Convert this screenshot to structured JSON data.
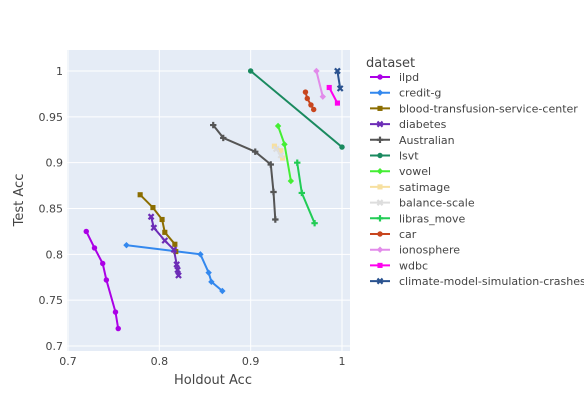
{
  "chart_data": {
    "type": "line",
    "xlabel": "Holdout Acc",
    "ylabel": "Test Acc",
    "xlim": [
      0.7,
      1.0
    ],
    "ylim": [
      0.7,
      1.0
    ],
    "x_ticks": [
      0.7,
      0.8,
      0.9,
      1.0
    ],
    "x_tick_labels": [
      "0.7",
      "0.8",
      "0.9",
      "1"
    ],
    "y_ticks": [
      0.7,
      0.75,
      0.8,
      0.85,
      0.9,
      0.95,
      1.0
    ],
    "y_tick_labels": [
      "0.7",
      "0.75",
      "0.8",
      "0.85",
      "0.9",
      "0.95",
      "1"
    ],
    "grid": true,
    "legend_title": "dataset",
    "legend_position": "right",
    "plot_background": "#E5ECF6",
    "series": [
      {
        "name": "ilpd",
        "color": "#AB00E6",
        "marker": "circle",
        "x": [
          0.72,
          0.729,
          0.738,
          0.742,
          0.752,
          0.755
        ],
        "y": [
          0.825,
          0.807,
          0.79,
          0.772,
          0.737,
          0.719
        ]
      },
      {
        "name": "credit-g",
        "color": "#3388EE",
        "marker": "diamond",
        "x": [
          0.764,
          0.845,
          0.854,
          0.857,
          0.869
        ],
        "y": [
          0.81,
          0.8,
          0.78,
          0.77,
          0.76
        ]
      },
      {
        "name": "blood-transfusion-service-center",
        "color": "#8B6D00",
        "marker": "square",
        "x": [
          0.779,
          0.793,
          0.803,
          0.806,
          0.817,
          0.818
        ],
        "y": [
          0.865,
          0.851,
          0.838,
          0.824,
          0.811,
          0.803
        ]
      },
      {
        "name": "diabetes",
        "color": "#6C2CB6",
        "marker": "x",
        "x": [
          0.791,
          0.794,
          0.806,
          0.816,
          0.819,
          0.82,
          0.821
        ],
        "y": [
          0.841,
          0.829,
          0.815,
          0.805,
          0.789,
          0.783,
          0.777
        ]
      },
      {
        "name": "Australian",
        "color": "#555555",
        "marker": "cross",
        "x": [
          0.859,
          0.87,
          0.905,
          0.922,
          0.925,
          0.927
        ],
        "y": [
          0.941,
          0.927,
          0.912,
          0.898,
          0.868,
          0.838
        ]
      },
      {
        "name": "lsvt",
        "color": "#1A8A5F",
        "marker": "circle",
        "x": [
          0.9,
          1.0
        ],
        "y": [
          1.0,
          0.917
        ]
      },
      {
        "name": "vowel",
        "color": "#44EE33",
        "marker": "diamond",
        "x": [
          0.93,
          0.937,
          0.944
        ],
        "y": [
          0.94,
          0.92,
          0.88
        ]
      },
      {
        "name": "satimage",
        "color": "#F7E0A0",
        "marker": "square",
        "x": [
          0.926,
          0.933,
          0.935
        ],
        "y": [
          0.918,
          0.913,
          0.905
        ]
      },
      {
        "name": "balance-scale",
        "color": "#DDDDDD",
        "marker": "x",
        "x": [
          0.928,
          0.933
        ],
        "y": [
          0.915,
          0.908
        ]
      },
      {
        "name": "libras_move",
        "color": "#22CC55",
        "marker": "cross",
        "x": [
          0.951,
          0.956,
          0.97
        ],
        "y": [
          0.9,
          0.867,
          0.834
        ]
      },
      {
        "name": "car",
        "color": "#C8461E",
        "marker": "circle",
        "x": [
          0.96,
          0.962,
          0.966,
          0.969
        ],
        "y": [
          0.977,
          0.97,
          0.963,
          0.958
        ]
      },
      {
        "name": "ionosphere",
        "color": "#E28BEA",
        "marker": "diamond",
        "x": [
          0.972,
          0.979
        ],
        "y": [
          1.0,
          0.972
        ]
      },
      {
        "name": "wdbc",
        "color": "#FF00EE",
        "marker": "square",
        "x": [
          0.986,
          0.995
        ],
        "y": [
          0.982,
          0.965
        ]
      },
      {
        "name": "climate-model-simulation-crashes",
        "color": "#2A528F",
        "marker": "x",
        "x": [
          0.995,
          0.998
        ],
        "y": [
          1.0,
          0.981
        ]
      }
    ]
  }
}
